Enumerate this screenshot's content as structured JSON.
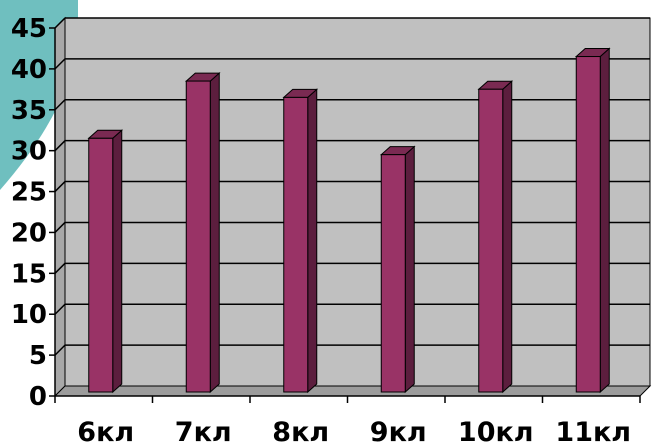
{
  "chart_data": {
    "type": "bar",
    "categories": [
      "6кл",
      "7кл",
      "8кл",
      "9кл",
      "10кл",
      "11кл"
    ],
    "values": [
      32,
      39,
      37,
      30,
      38,
      42
    ],
    "title": "",
    "xlabel": "",
    "ylabel": "",
    "ylim": [
      0,
      45
    ],
    "yticks": [
      "0",
      "5",
      "10",
      "15",
      "20",
      "25",
      "30",
      "35",
      "40",
      "45"
    ],
    "grid": true,
    "legend": "none",
    "style": "3d-column"
  },
  "colors": {
    "plot_back": "#c0c0c0",
    "plot_wall_side": "#a8a8a8",
    "plot_floor": "#9c9c9c",
    "bar_front": "#993366",
    "bar_side": "#5c1e3e",
    "bar_top": "#7a2a52",
    "gridline": "#000000",
    "corner_teal": "#6fbfbf"
  },
  "decoration_icon": "teal-corner-shape"
}
